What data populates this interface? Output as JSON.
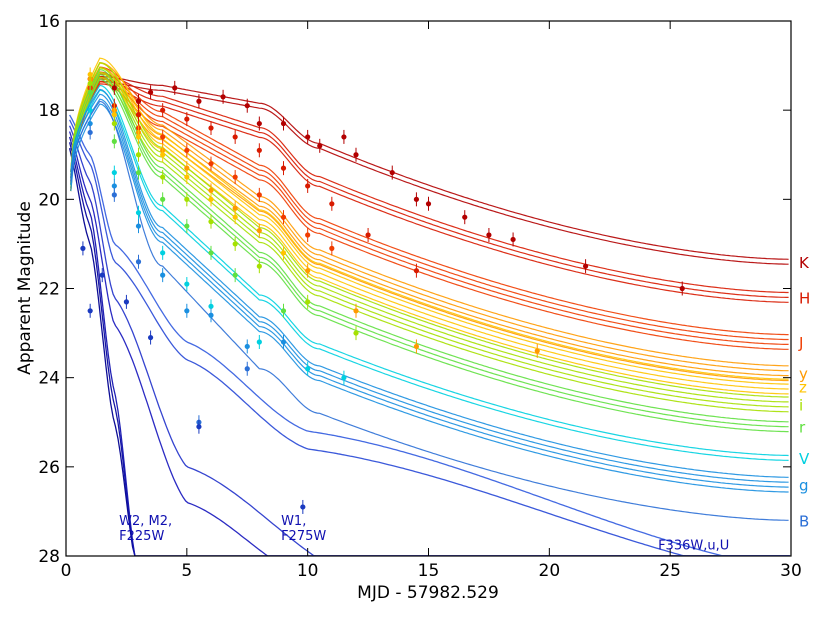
{
  "chart_data": {
    "type": "line",
    "title": "",
    "xlabel": "MJD - 57982.529",
    "ylabel": "Apparent Magnitude",
    "xlim": [
      0,
      30
    ],
    "ylim": [
      28,
      16
    ],
    "y_inverted": true,
    "xticks": [
      0,
      5,
      10,
      15,
      20,
      25,
      30
    ],
    "yticks": [
      16,
      18,
      20,
      22,
      24,
      26,
      28
    ],
    "grid": false,
    "series": [
      {
        "name": "K",
        "color": "#b30000",
        "peak": 17.3,
        "m4": 17.5,
        "m8": 17.9,
        "m10": 18.8,
        "m30": 21.4,
        "n": 2,
        "points": [
          [
            1,
            17.3
          ],
          [
            2,
            17.5
          ],
          [
            3,
            17.8
          ],
          [
            3.5,
            17.6
          ],
          [
            4.5,
            17.5
          ],
          [
            5.5,
            17.8
          ],
          [
            6.5,
            17.7
          ],
          [
            7.5,
            17.9
          ],
          [
            8,
            18.3
          ],
          [
            9,
            18.3
          ],
          [
            10,
            18.6
          ],
          [
            10.5,
            18.8
          ],
          [
            11.5,
            18.6
          ],
          [
            12,
            19.0
          ],
          [
            13.5,
            19.4
          ],
          [
            14.5,
            20.0
          ],
          [
            15,
            20.1
          ],
          [
            16.5,
            20.4
          ],
          [
            17.5,
            20.8
          ],
          [
            18.5,
            20.9
          ],
          [
            21.5,
            21.5
          ],
          [
            25.5,
            22.0
          ]
        ]
      },
      {
        "name": "H",
        "color": "#d81a00",
        "peak": 17.3,
        "m4": 17.8,
        "m8": 18.5,
        "m10": 19.6,
        "m30": 22.2,
        "n": 3,
        "points": [
          [
            1,
            17.5
          ],
          [
            2,
            17.9
          ],
          [
            3,
            18.1
          ],
          [
            4,
            18.0
          ],
          [
            5,
            18.2
          ],
          [
            6,
            18.4
          ],
          [
            7,
            18.6
          ],
          [
            8,
            18.9
          ],
          [
            9,
            19.3
          ],
          [
            10,
            19.7
          ],
          [
            11,
            20.1
          ],
          [
            12.5,
            20.8
          ],
          [
            14.5,
            21.6
          ]
        ]
      },
      {
        "name": "J",
        "color": "#f03c00",
        "peak": 17.2,
        "m4": 18.2,
        "m8": 19.4,
        "m10": 20.6,
        "m30": 23.2,
        "n": 4,
        "points": [
          [
            1,
            17.5
          ],
          [
            2,
            18.0
          ],
          [
            3,
            18.4
          ],
          [
            4,
            18.6
          ],
          [
            5,
            18.9
          ],
          [
            6,
            19.2
          ],
          [
            7,
            19.5
          ],
          [
            8,
            19.9
          ],
          [
            9,
            20.4
          ],
          [
            10,
            20.8
          ],
          [
            11,
            21.1
          ]
        ]
      },
      {
        "name": "y",
        "color": "#ff9a00",
        "peak": 17.1,
        "m4": 18.5,
        "m8": 20.1,
        "m10": 21.3,
        "m30": 23.9,
        "n": 4,
        "points": [
          [
            1,
            17.3
          ],
          [
            2,
            18.0
          ],
          [
            3,
            18.5
          ],
          [
            4,
            18.9
          ],
          [
            5,
            19.3
          ],
          [
            6,
            19.8
          ],
          [
            7,
            20.2
          ],
          [
            8,
            20.7
          ],
          [
            10,
            21.6
          ],
          [
            12,
            22.5
          ],
          [
            14.5,
            23.3
          ],
          [
            19.5,
            23.4
          ]
        ]
      },
      {
        "name": "z",
        "color": "#ffc400",
        "peak": 17.0,
        "m4": 18.7,
        "m8": 20.4,
        "m10": 21.6,
        "m30": 24.2,
        "n": 4,
        "points": [
          [
            1,
            17.2
          ],
          [
            2,
            18.1
          ],
          [
            3,
            18.6
          ],
          [
            4,
            19.0
          ],
          [
            5,
            19.5
          ],
          [
            6,
            20.0
          ],
          [
            7,
            20.4
          ],
          [
            9,
            21.2
          ]
        ]
      },
      {
        "name": "i",
        "color": "#a6e000",
        "peak": 17.1,
        "m4": 19.0,
        "m8": 20.8,
        "m10": 22.0,
        "m30": 24.6,
        "n": 4,
        "points": [
          [
            1,
            17.4
          ],
          [
            2,
            18.3
          ],
          [
            3,
            19.0
          ],
          [
            4,
            19.5
          ],
          [
            5,
            20.0
          ],
          [
            6,
            20.5
          ],
          [
            7,
            21.0
          ],
          [
            8,
            21.5
          ],
          [
            10,
            22.3
          ],
          [
            12,
            23.0
          ]
        ]
      },
      {
        "name": "r",
        "color": "#60e040",
        "peak": 17.2,
        "m4": 19.4,
        "m8": 21.3,
        "m10": 22.5,
        "m30": 25.1,
        "n": 3,
        "points": [
          [
            1,
            17.6
          ],
          [
            2,
            18.7
          ],
          [
            3,
            19.4
          ],
          [
            4,
            20.0
          ],
          [
            5,
            20.6
          ],
          [
            6,
            21.2
          ],
          [
            7,
            21.7
          ],
          [
            9,
            22.5
          ]
        ]
      },
      {
        "name": "V",
        "color": "#00d0e0",
        "peak": 17.5,
        "m4": 20.2,
        "m8": 22.2,
        "m10": 23.3,
        "m30": 25.8,
        "n": 2,
        "points": [
          [
            1,
            18.0
          ],
          [
            2,
            19.4
          ],
          [
            3,
            20.3
          ],
          [
            4,
            21.2
          ],
          [
            5,
            21.9
          ],
          [
            6,
            22.4
          ],
          [
            8,
            23.2
          ],
          [
            10,
            23.8
          ],
          [
            11.5,
            24.0
          ]
        ]
      },
      {
        "name": "g",
        "color": "#1a8fe0",
        "peak": 17.7,
        "m4": 20.8,
        "m8": 22.8,
        "m10": 23.9,
        "m30": 26.4,
        "n": 4,
        "points": [
          [
            1,
            18.3
          ],
          [
            2,
            19.7
          ],
          [
            3,
            20.6
          ],
          [
            4,
            21.7
          ],
          [
            5,
            22.5
          ],
          [
            6,
            22.6
          ],
          [
            7.5,
            23.3
          ],
          [
            9,
            23.2
          ]
        ]
      },
      {
        "name": "B",
        "color": "#2b6fd6",
        "peak": 17.8,
        "m4": 21.5,
        "m8": 23.8,
        "m10": 24.8,
        "m30": 27.2,
        "n": 1,
        "points": [
          [
            1,
            18.5
          ],
          [
            2,
            19.9
          ],
          [
            3,
            21.4
          ],
          [
            5.5,
            25.0
          ],
          [
            7.5,
            23.8
          ]
        ]
      }
    ],
    "uv_series": [
      {
        "name": "W2",
        "color": "#000090",
        "m0": 18.6,
        "m1": 21.0,
        "m2": 25.0,
        "m3": 28.5
      },
      {
        "name": "M2",
        "color": "#0a0aa0",
        "m0": 18.5,
        "m1": 20.6,
        "m2": 24.6,
        "m3": 28.5
      },
      {
        "name": "F225W",
        "color": "#1414b0",
        "m0": 18.4,
        "m1": 20.3,
        "m2": 24.3,
        "m3": 28.5
      },
      {
        "name": "W1",
        "color": "#2020c0",
        "m0": 18.3,
        "m1": 20.0,
        "m2": 22.8,
        "m5": 26.8,
        "m10": 28.5
      },
      {
        "name": "F275W",
        "color": "#2a3acc",
        "m0": 18.2,
        "m1": 19.6,
        "m2": 22.2,
        "m5": 26.0,
        "m12": 28.5
      },
      {
        "name": "F336W",
        "color": "#3050d8",
        "m0": 18.1,
        "m1": 19.2,
        "m2": 21.4,
        "m5": 23.6,
        "m10": 25.6,
        "m30": 28.5
      },
      {
        "name": "U",
        "color": "#3a62e0",
        "m0": 18.0,
        "m1": 19.0,
        "m2": 21.0,
        "m5": 23.2,
        "m10": 25.2,
        "m30": 28.3
      }
    ],
    "uv_points": [
      [
        0.7,
        21.1
      ],
      [
        1.0,
        22.5
      ],
      [
        1.5,
        21.7
      ],
      [
        2.5,
        22.3
      ],
      [
        3.5,
        23.1
      ],
      [
        5.5,
        25.1
      ],
      [
        9.8,
        26.9
      ]
    ],
    "annotations": [
      {
        "id": "uv1",
        "lines": [
          "W2, M2,",
          "F225W"
        ],
        "x": 2.2,
        "y": 27.3
      },
      {
        "id": "uv2",
        "lines": [
          "W1,",
          "F275W"
        ],
        "x": 8.9,
        "y": 27.3
      },
      {
        "id": "uv3",
        "lines": [
          "F336W,u,U"
        ],
        "x": 24.5,
        "y": 27.85
      }
    ]
  }
}
